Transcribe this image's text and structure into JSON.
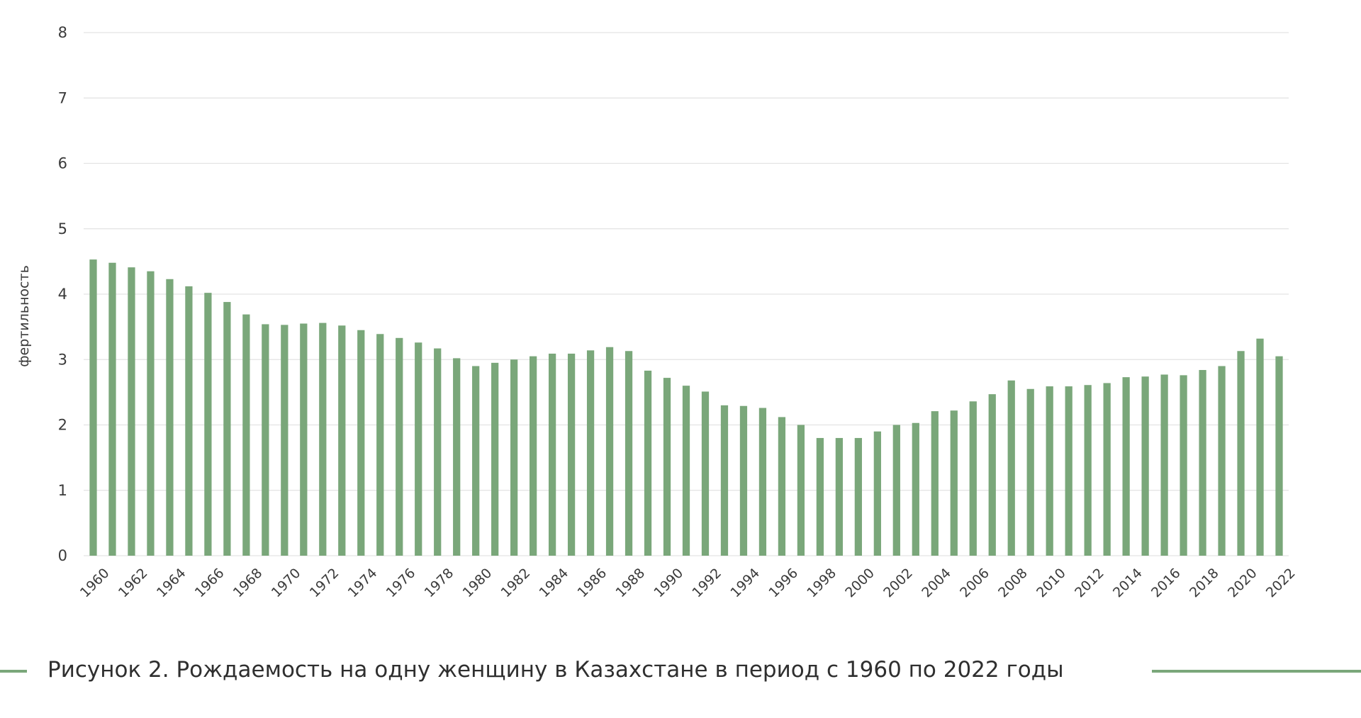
{
  "caption": "Рисунок 2. Рождаемость на одну женщину в Казахстане в период с 1960 по 2022 годы",
  "colors": {
    "bar": "#7aa77a",
    "grid": "#e3e3e3",
    "text": "#3a3a3a",
    "accent_line": "#7aa77a"
  },
  "chart_data": {
    "type": "bar",
    "title": "",
    "xlabel": "",
    "ylabel": "фертильность",
    "ylim": [
      0,
      8
    ],
    "yticks": [
      "0",
      "1",
      "2",
      "3",
      "4",
      "5",
      "6",
      "7",
      "8"
    ],
    "grid": true,
    "categories": [
      "1960",
      "1961",
      "1962",
      "1963",
      "1964",
      "1965",
      "1966",
      "1967",
      "1968",
      "1969",
      "1970",
      "1971",
      "1972",
      "1973",
      "1974",
      "1975",
      "1976",
      "1977",
      "1978",
      "1979",
      "1980",
      "1981",
      "1982",
      "1983",
      "1984",
      "1985",
      "1986",
      "1987",
      "1988",
      "1989",
      "1990",
      "1991",
      "1992",
      "1993",
      "1994",
      "1995",
      "1996",
      "1997",
      "1998",
      "1999",
      "2000",
      "2001",
      "2002",
      "2003",
      "2004",
      "2005",
      "2006",
      "2007",
      "2008",
      "2009",
      "2010",
      "2011",
      "2012",
      "2013",
      "2014",
      "2015",
      "2016",
      "2017",
      "2018",
      "2019",
      "2020",
      "2021",
      "2022"
    ],
    "xticks": [
      "1960",
      "1962",
      "1964",
      "1966",
      "1968",
      "1970",
      "1972",
      "1974",
      "1976",
      "1978",
      "1980",
      "1982",
      "1984",
      "1986",
      "1988",
      "1990",
      "1992",
      "1994",
      "1996",
      "1998",
      "2000",
      "2002",
      "2004",
      "2006",
      "2008",
      "2010",
      "2012",
      "2014",
      "2016",
      "2018",
      "2020",
      "2022"
    ],
    "values": [
      4.53,
      4.48,
      4.41,
      4.35,
      4.23,
      4.12,
      4.02,
      3.88,
      3.69,
      3.54,
      3.53,
      3.55,
      3.56,
      3.52,
      3.45,
      3.39,
      3.33,
      3.26,
      3.17,
      3.02,
      2.9,
      2.95,
      3.0,
      3.05,
      3.09,
      3.09,
      3.14,
      3.19,
      3.13,
      2.83,
      2.72,
      2.6,
      2.51,
      2.3,
      2.29,
      2.26,
      2.12,
      2.0,
      1.8,
      1.8,
      1.8,
      1.9,
      2.0,
      2.03,
      2.21,
      2.22,
      2.36,
      2.47,
      2.68,
      2.55,
      2.59,
      2.59,
      2.61,
      2.64,
      2.73,
      2.74,
      2.77,
      2.76,
      2.84,
      2.9,
      3.13,
      3.32,
      3.05
    ]
  }
}
